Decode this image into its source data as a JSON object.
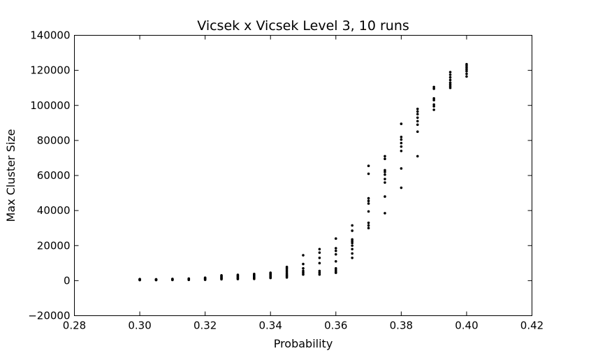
{
  "chart_data": {
    "type": "scatter",
    "title": "Vicsek x Vicsek Level 3, 10 runs",
    "xlabel": "Probability",
    "ylabel": "Max Cluster Size",
    "xlim": [
      0.28,
      0.42
    ],
    "ylim": [
      -20000,
      140000
    ],
    "xticks": [
      "0.28",
      "0.30",
      "0.32",
      "0.34",
      "0.36",
      "0.38",
      "0.40",
      "0.42"
    ],
    "yticks": [
      "−20000",
      "0",
      "20000",
      "40000",
      "60000",
      "80000",
      "100000",
      "120000",
      "140000"
    ],
    "grid": false,
    "marker_color": "#000000",
    "points": [
      {
        "x": 0.3,
        "ys": [
          300,
          450,
          600,
          700,
          800,
          900
        ]
      },
      {
        "x": 0.305,
        "ys": [
          300,
          450,
          550,
          700,
          800
        ]
      },
      {
        "x": 0.31,
        "ys": [
          400,
          550,
          700,
          850,
          1000
        ]
      },
      {
        "x": 0.315,
        "ys": [
          450,
          600,
          750,
          900,
          1050,
          1200
        ]
      },
      {
        "x": 0.32,
        "ys": [
          500,
          800,
          1100,
          1400,
          1700
        ]
      },
      {
        "x": 0.325,
        "ys": [
          800,
          1200,
          1600,
          2000,
          2500,
          3000
        ]
      },
      {
        "x": 0.33,
        "ys": [
          900,
          1300,
          1800,
          2300,
          2800,
          3300
        ]
      },
      {
        "x": 0.335,
        "ys": [
          1000,
          1500,
          2000,
          2600,
          3200,
          3800
        ]
      },
      {
        "x": 0.34,
        "ys": [
          1500,
          2000,
          2500,
          3000,
          3500,
          4000,
          4500
        ]
      },
      {
        "x": 0.345,
        "ys": [
          1800,
          2500,
          3200,
          4000,
          5000,
          6000,
          7000,
          7800
        ]
      },
      {
        "x": 0.35,
        "ys": [
          3500,
          4500,
          5500,
          7000,
          9500,
          14500
        ]
      },
      {
        "x": 0.355,
        "ys": [
          3500,
          4500,
          5500,
          10000,
          13000,
          16000,
          18000
        ]
      },
      {
        "x": 0.36,
        "ys": [
          4500,
          5000,
          6000,
          7000,
          11000,
          15000,
          17000,
          18500,
          24000
        ]
      },
      {
        "x": 0.365,
        "ys": [
          13000,
          15500,
          18000,
          20000,
          21500,
          22500,
          23500,
          28500,
          31500
        ]
      },
      {
        "x": 0.37,
        "ys": [
          30000,
          31500,
          33000,
          39500,
          44000,
          45500,
          47000,
          61000,
          65500
        ]
      },
      {
        "x": 0.375,
        "ys": [
          38500,
          48000,
          56000,
          58000,
          60500,
          62000,
          63000,
          69500,
          71000
        ]
      },
      {
        "x": 0.38,
        "ys": [
          53000,
          64000,
          74000,
          76500,
          78500,
          80500,
          82000,
          89500
        ]
      },
      {
        "x": 0.385,
        "ys": [
          71000,
          85000,
          89000,
          91000,
          93000,
          95000,
          96500,
          98000
        ]
      },
      {
        "x": 0.39,
        "ys": [
          97500,
          99500,
          100500,
          103000,
          104000,
          109500,
          110500
        ]
      },
      {
        "x": 0.395,
        "ys": [
          110000,
          111000,
          112000,
          113000,
          114500,
          116000,
          117500,
          119000
        ]
      },
      {
        "x": 0.4,
        "ys": [
          116500,
          118000,
          119500,
          120500,
          121500,
          122500,
          123500
        ]
      }
    ]
  }
}
